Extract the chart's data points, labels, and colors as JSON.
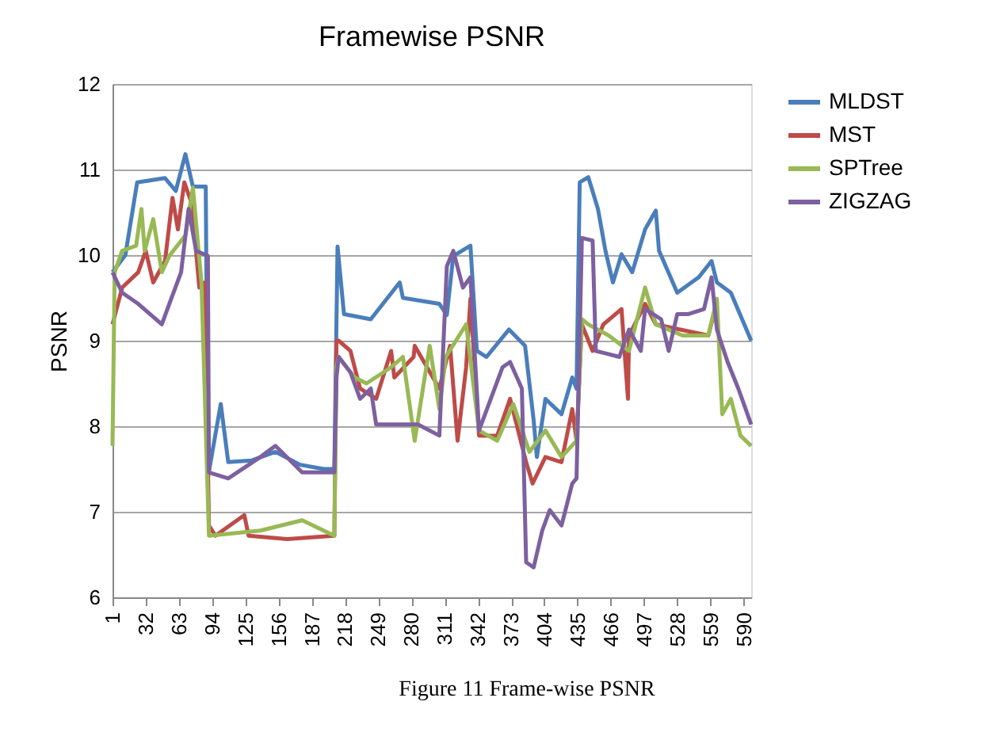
{
  "chart_data": {
    "type": "line",
    "title": "Framewise PSNR",
    "ylabel": "PSNR",
    "xlim": [
      1,
      597
    ],
    "xticks": [
      1,
      32,
      63,
      94,
      125,
      156,
      187,
      218,
      249,
      280,
      311,
      342,
      373,
      404,
      435,
      466,
      497,
      528,
      559,
      590
    ],
    "ylim": [
      6,
      12
    ],
    "yticks": [
      6,
      7,
      8,
      9,
      10,
      11,
      12
    ],
    "grid": "y",
    "legend": "right",
    "marker": "none",
    "line_style": "solid",
    "annotations": [
      "Figure 11 Frame-wise PSNR"
    ],
    "series": [
      {
        "name": "MLDST",
        "color": "#4a7ebb",
        "x": [
          1,
          13,
          24,
          50,
          60,
          69,
          76,
          88,
          90,
          102,
          109,
          131,
          153,
          176,
          198,
          208,
          211,
          217,
          242,
          269,
          272,
          306,
          313,
          319,
          335,
          341,
          350,
          371,
          386,
          394,
          397,
          405,
          420,
          430,
          434,
          437,
          445,
          454,
          461,
          468,
          476,
          486,
          498,
          508,
          511,
          528,
          548,
          560,
          565,
          578,
          597
        ],
        "values": [
          9.8,
          10.0,
          10.85,
          10.9,
          10.75,
          11.18,
          10.8,
          10.8,
          7.4,
          8.26,
          7.58,
          7.6,
          7.7,
          7.55,
          7.5,
          7.5,
          10.1,
          9.31,
          9.25,
          9.68,
          9.5,
          9.43,
          9.3,
          9.99,
          10.11,
          8.88,
          8.81,
          9.13,
          8.94,
          8.07,
          7.64,
          8.32,
          8.14,
          8.57,
          8.44,
          10.85,
          10.91,
          10.54,
          10.05,
          9.68,
          10.01,
          9.8,
          10.3,
          10.52,
          10.05,
          9.56,
          9.74,
          9.93,
          9.68,
          9.56,
          9.0
        ]
      },
      {
        "name": "MST",
        "color": "#be4b48",
        "x": [
          1,
          10,
          25,
          32,
          39,
          50,
          57,
          62,
          68,
          75,
          82,
          87,
          91,
          97,
          124,
          128,
          164,
          208,
          210,
          212,
          223,
          232,
          247,
          261,
          264,
          282,
          283,
          306,
          316,
          323,
          331,
          335,
          343,
          360,
          372,
          387,
          393,
          405,
          420,
          430,
          434,
          439,
          449,
          459,
          476,
          482,
          483,
          498,
          508,
          557,
          565
        ],
        "values": [
          9.19,
          9.62,
          9.8,
          10.05,
          9.68,
          9.93,
          10.67,
          10.3,
          10.85,
          10.6,
          9.62,
          9.68,
          6.84,
          6.72,
          6.96,
          6.72,
          6.68,
          6.72,
          9.0,
          9.0,
          8.88,
          8.44,
          8.32,
          8.88,
          8.57,
          8.81,
          8.94,
          8.44,
          8.94,
          7.83,
          8.69,
          9.49,
          7.89,
          7.89,
          8.32,
          7.58,
          7.33,
          7.64,
          7.58,
          8.2,
          7.83,
          9.19,
          8.88,
          9.19,
          9.37,
          8.32,
          9.06,
          9.43,
          9.19,
          9.06,
          9.45
        ]
      },
      {
        "name": "SPTree",
        "color": "#98b954",
        "x": [
          1,
          3,
          10,
          23,
          28,
          31,
          39,
          47,
          54,
          69,
          76,
          84,
          91,
          139,
          178,
          208,
          210,
          212,
          227,
          238,
          261,
          272,
          283,
          297,
          306,
          312,
          331,
          343,
          360,
          375,
          390,
          405,
          420,
          434,
          439,
          445,
          464,
          483,
          498,
          508,
          533,
          557,
          565,
          570,
          578,
          587,
          597
        ],
        "values": [
          7.77,
          9.8,
          10.05,
          10.11,
          10.54,
          10.05,
          10.42,
          9.8,
          9.99,
          10.23,
          10.79,
          9.68,
          6.72,
          6.78,
          6.9,
          6.72,
          8.69,
          8.81,
          8.57,
          8.5,
          8.69,
          8.81,
          7.83,
          8.94,
          8.2,
          8.81,
          9.19,
          7.95,
          7.83,
          8.26,
          7.7,
          7.95,
          7.64,
          7.83,
          9.25,
          9.19,
          9.06,
          8.88,
          9.62,
          9.19,
          9.06,
          9.06,
          9.49,
          8.14,
          8.32,
          7.89,
          7.77
        ]
      },
      {
        "name": "ZIGZAG",
        "color": "#7d60a0",
        "x": [
          1,
          10,
          25,
          47,
          54,
          65,
          72,
          79,
          90,
          91,
          109,
          139,
          153,
          178,
          208,
          210,
          212,
          223,
          232,
          242,
          247,
          261,
          286,
          306,
          313,
          319,
          328,
          335,
          343,
          365,
          372,
          383,
          387,
          394,
          402,
          409,
          420,
          430,
          434,
          439,
          449,
          452,
          474,
          483,
          494,
          498,
          513,
          520,
          528,
          538,
          553,
          560,
          565,
          575,
          585,
          597
        ],
        "values": [
          9.8,
          9.56,
          9.43,
          9.19,
          9.43,
          9.8,
          10.54,
          10.05,
          9.99,
          7.46,
          7.39,
          7.64,
          7.77,
          7.46,
          7.46,
          8.57,
          8.81,
          8.63,
          8.32,
          8.44,
          8.02,
          8.02,
          8.02,
          7.89,
          9.87,
          10.05,
          9.62,
          9.74,
          7.95,
          8.69,
          8.75,
          8.44,
          6.41,
          6.35,
          6.78,
          7.02,
          6.84,
          7.33,
          7.39,
          10.2,
          10.17,
          8.88,
          8.81,
          9.13,
          8.88,
          9.37,
          9.25,
          8.88,
          9.31,
          9.31,
          9.37,
          9.74,
          9.13,
          8.75,
          8.44,
          8.02
        ]
      }
    ]
  }
}
